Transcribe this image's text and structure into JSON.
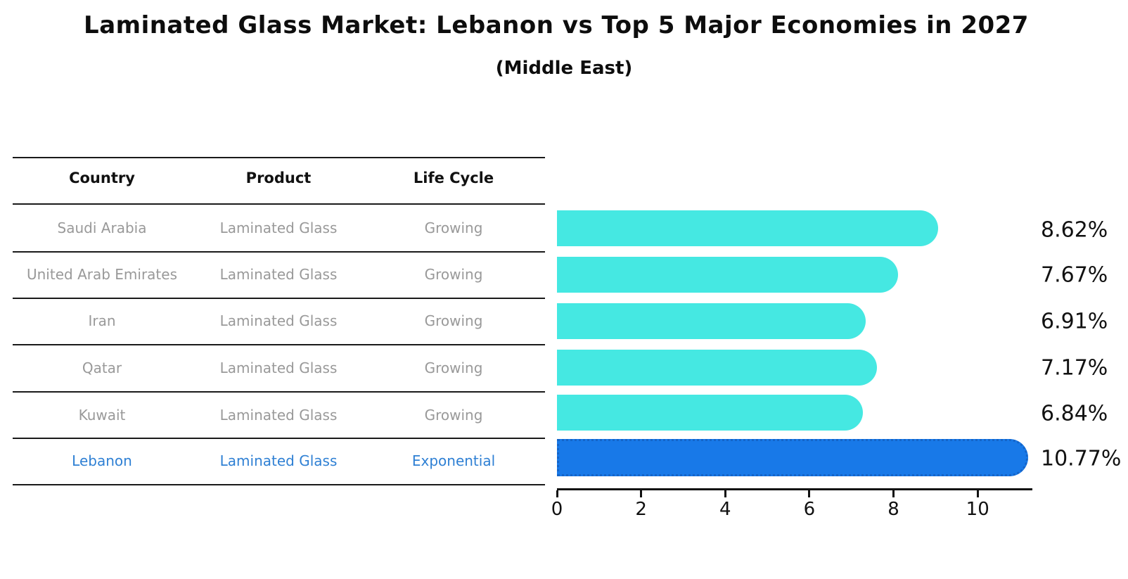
{
  "title": "Laminated Glass Market: Lebanon vs Top 5 Major Economies in 2027",
  "subtitle": "(Middle East)",
  "table": {
    "headers": [
      "Country",
      "Product",
      "Life Cycle"
    ],
    "rows": [
      {
        "country": "Saudi Arabia",
        "product": "Laminated Glass",
        "life_cycle": "Growing"
      },
      {
        "country": "United Arab Emirates",
        "product": "Laminated Glass",
        "life_cycle": "Growing"
      },
      {
        "country": "Iran",
        "product": "Laminated Glass",
        "life_cycle": "Growing"
      },
      {
        "country": "Qatar",
        "product": "Laminated Glass",
        "life_cycle": "Growing"
      },
      {
        "country": "Kuwait",
        "product": "Laminated Glass",
        "life_cycle": "Growing"
      },
      {
        "country": "Lebanon",
        "product": "Laminated Glass",
        "life_cycle": "Exponential"
      }
    ]
  },
  "chart_data": {
    "type": "bar",
    "orientation": "horizontal",
    "title": "Laminated Glass Market: Lebanon vs Top 5 Major Economies in 2027",
    "subtitle": "(Middle East)",
    "categories": [
      "Saudi Arabia",
      "United Arab Emirates",
      "Iran",
      "Qatar",
      "Kuwait",
      "Lebanon"
    ],
    "values": [
      8.62,
      7.67,
      6.91,
      7.17,
      6.84,
      10.77
    ],
    "value_labels": [
      "8.62%",
      "7.67%",
      "6.91%",
      "7.17%",
      "6.84%",
      "10.77%"
    ],
    "x_ticks": [
      0,
      2,
      4,
      6,
      8,
      10
    ],
    "xlim": [
      0,
      11.3
    ],
    "grid": false,
    "legend": false,
    "bar_color": "#45E8E2",
    "highlight_color": "#1879E8",
    "highlight_border_color": "#1464c8",
    "highlight_index": 5
  },
  "colors": {
    "row_text": "#999999",
    "highlight_text": "#2F80D4",
    "header_text": "#111111",
    "axis": "#111111"
  }
}
